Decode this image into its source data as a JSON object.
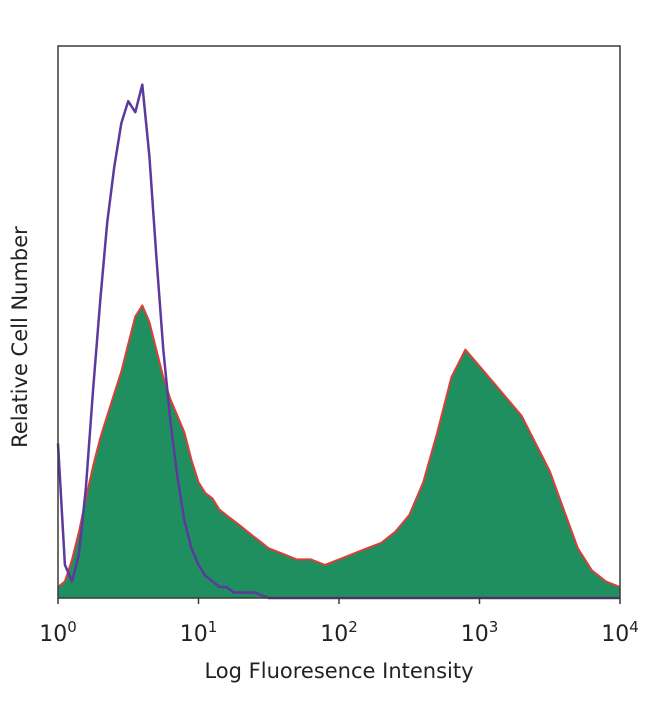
{
  "chart_data": {
    "type": "area",
    "title": "",
    "xlabel": "Log Fluoresence Intensity",
    "ylabel": "Relative Cell Number",
    "x_scale": "log",
    "xlim": [
      1,
      10000
    ],
    "ylim": [
      0,
      100
    ],
    "x_ticks": [
      {
        "value": 1,
        "base": "10",
        "exp": "0"
      },
      {
        "value": 10,
        "base": "10",
        "exp": "1"
      },
      {
        "value": 100,
        "base": "10",
        "exp": "2"
      },
      {
        "value": 1000,
        "base": "10",
        "exp": "3"
      },
      {
        "value": 10000,
        "base": "10",
        "exp": "4"
      }
    ],
    "y_ticks_shown": false,
    "grid": false,
    "legend": "none",
    "series": [
      {
        "style": "filled-area",
        "fill_color": "#1f8f5f",
        "edge_color": "#d9403a",
        "x": [
          1,
          1.12,
          1.26,
          1.41,
          1.58,
          1.78,
          2,
          2.24,
          2.51,
          2.82,
          3.16,
          3.55,
          3.98,
          4.47,
          5.01,
          5.62,
          6.31,
          7.08,
          7.94,
          8.91,
          10,
          11.2,
          12.6,
          14.1,
          15.8,
          17.8,
          20,
          22.4,
          25.1,
          28.2,
          31.6,
          39.8,
          50.1,
          63.1,
          79.4,
          100,
          126,
          158,
          200,
          251,
          316,
          398,
          501,
          631,
          794,
          1000,
          1259,
          1585,
          1995,
          2512,
          3162,
          3981,
          5012,
          6310,
          7943,
          10000
        ],
        "y": [
          2,
          3,
          7,
          12,
          18,
          24,
          29,
          33,
          37,
          41,
          46,
          51,
          53,
          50,
          45,
          40,
          36,
          33,
          30,
          25,
          21,
          19,
          18,
          16,
          15,
          14,
          13,
          12,
          11,
          10,
          9,
          8,
          7,
          7,
          6,
          7,
          8,
          9,
          10,
          12,
          15,
          21,
          30,
          40,
          45,
          42,
          39,
          36,
          33,
          28,
          23,
          16,
          9,
          5,
          3,
          2
        ]
      },
      {
        "style": "line",
        "color": "#5b3a9e",
        "x": [
          1,
          1.12,
          1.26,
          1.41,
          1.58,
          1.78,
          2,
          2.24,
          2.51,
          2.82,
          3.16,
          3.55,
          3.98,
          4.47,
          5.01,
          5.62,
          6.31,
          7.08,
          7.94,
          8.91,
          10,
          11.2,
          12.6,
          14.1,
          15.8,
          17.8,
          20,
          25.1,
          31.6,
          50.1,
          100,
          1000,
          10000
        ],
        "y": [
          28,
          6,
          3,
          8,
          20,
          38,
          54,
          68,
          78,
          86,
          90,
          88,
          93,
          80,
          62,
          45,
          32,
          22,
          14,
          9,
          6,
          4,
          3,
          2,
          2,
          1,
          1,
          1,
          0,
          0,
          0,
          0,
          0
        ]
      }
    ]
  }
}
